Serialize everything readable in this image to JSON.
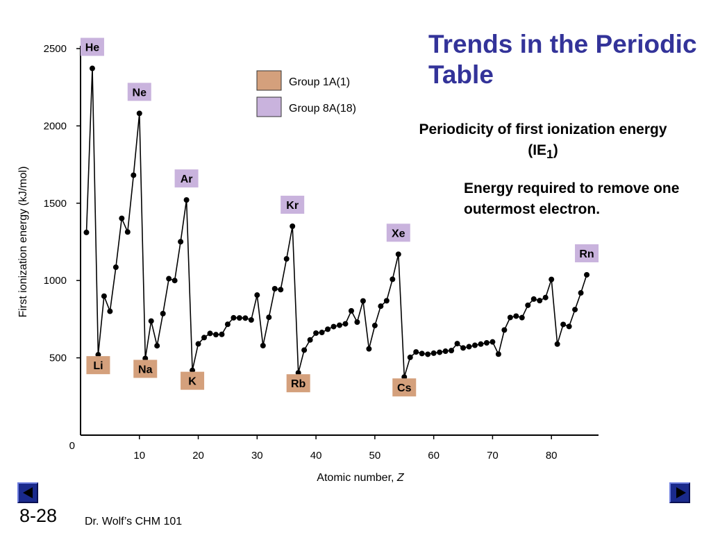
{
  "title": "Trends in the Periodic Table",
  "subtitle_main": "Periodicity of first ionization energy (IE",
  "subtitle_sub": "1",
  "subtitle_end": ")",
  "definition": "Energy required to remove one outermost electron.",
  "slide_number": "8-28",
  "footer": "Dr. Wolf’s CHM 101",
  "chart_data": {
    "type": "line",
    "xlabel": "Atomic number, ",
    "xlabel_var": "Z",
    "ylabel": "First ionization energy (kJ/mol)",
    "xlim": [
      0,
      88
    ],
    "ylim": [
      0,
      2500
    ],
    "x_ticks": [
      10,
      20,
      30,
      40,
      50,
      60,
      70,
      80
    ],
    "y_ticks": [
      500,
      1000,
      1500,
      2000,
      2500
    ],
    "origin_label": "0",
    "legend": {
      "placement": "top-center",
      "entries": [
        {
          "label": "Group 1A(1)",
          "color": "#d4a07c"
        },
        {
          "label": "Group 8A(18)",
          "color": "#c9b3dd"
        }
      ]
    },
    "series": [
      {
        "x": [
          1,
          2,
          3,
          4,
          5,
          6,
          7,
          8,
          9,
          10,
          11,
          12,
          13,
          14,
          15,
          16,
          17,
          18,
          19,
          20,
          21,
          22,
          23,
          24,
          25,
          26,
          27,
          28,
          29,
          30,
          31,
          32,
          33,
          34,
          35,
          36,
          37,
          38,
          39,
          40,
          41,
          42,
          43,
          44,
          45,
          46,
          47,
          48,
          49,
          50,
          51,
          52,
          53,
          54,
          55,
          56,
          57,
          58,
          59,
          60,
          61,
          62,
          63,
          64,
          65,
          66,
          67,
          68,
          69,
          70,
          71,
          72,
          73,
          74,
          75,
          76,
          77,
          78,
          79,
          80,
          81,
          82,
          83,
          84,
          85,
          86
        ],
        "y": [
          1311,
          2372,
          520,
          899,
          801,
          1086,
          1402,
          1314,
          1681,
          2081,
          496,
          738,
          578,
          786,
          1012,
          1000,
          1251,
          1521,
          419,
          590,
          631,
          658,
          650,
          652,
          717,
          759,
          758,
          757,
          745,
          906,
          579,
          762,
          947,
          941,
          1140,
          1351,
          403,
          550,
          616,
          660,
          664,
          685,
          702,
          711,
          720,
          804,
          731,
          868,
          558,
          709,
          834,
          869,
          1008,
          1170,
          376,
          503,
          538,
          528,
          523,
          530,
          536,
          543,
          547,
          592,
          564,
          572,
          581,
          589,
          597,
          603,
          524,
          680,
          761,
          770,
          760,
          840,
          880,
          870,
          890,
          1007,
          589,
          716,
          703,
          812,
          920,
          1037
        ]
      }
    ],
    "annotations": [
      {
        "text": "He",
        "x": 2,
        "y": 2372,
        "group": "8A",
        "color": "#c9b3dd"
      },
      {
        "text": "Ne",
        "x": 10,
        "y": 2081,
        "group": "8A",
        "color": "#c9b3dd"
      },
      {
        "text": "Ar",
        "x": 18,
        "y": 1521,
        "group": "8A",
        "color": "#c9b3dd"
      },
      {
        "text": "Kr",
        "x": 36,
        "y": 1351,
        "group": "8A",
        "color": "#c9b3dd"
      },
      {
        "text": "Xe",
        "x": 54,
        "y": 1170,
        "group": "8A",
        "color": "#c9b3dd"
      },
      {
        "text": "Rn",
        "x": 86,
        "y": 1037,
        "group": "8A",
        "color": "#c9b3dd"
      },
      {
        "text": "Li",
        "x": 3,
        "y": 520,
        "group": "1A",
        "color": "#d4a07c"
      },
      {
        "text": "Na",
        "x": 11,
        "y": 496,
        "group": "1A",
        "color": "#d4a07c"
      },
      {
        "text": "K",
        "x": 19,
        "y": 419,
        "group": "1A",
        "color": "#d4a07c"
      },
      {
        "text": "Rb",
        "x": 37,
        "y": 403,
        "group": "1A",
        "color": "#d4a07c"
      },
      {
        "text": "Cs",
        "x": 55,
        "y": 376,
        "group": "1A",
        "color": "#d4a07c"
      }
    ]
  }
}
